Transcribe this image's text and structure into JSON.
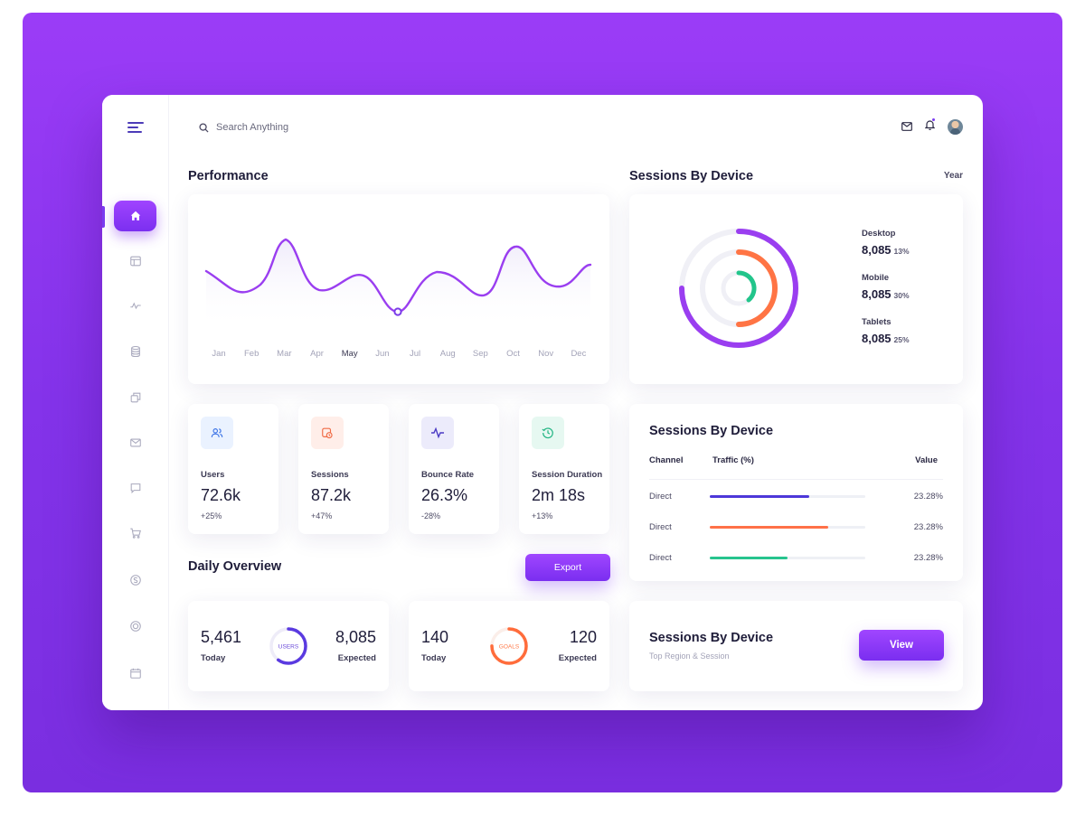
{
  "search": {
    "placeholder": "Search Anything"
  },
  "sidebar": {
    "items": [
      {
        "icon": "home-icon",
        "active": true
      },
      {
        "icon": "layout-icon"
      },
      {
        "icon": "activity-icon"
      },
      {
        "icon": "database-icon"
      },
      {
        "icon": "copy-icon"
      },
      {
        "icon": "mail-icon"
      },
      {
        "icon": "chat-icon"
      },
      {
        "icon": "cart-icon"
      },
      {
        "icon": "currency-icon"
      },
      {
        "icon": "target-icon"
      },
      {
        "icon": "calendar-icon"
      }
    ]
  },
  "performance": {
    "title": "Performance",
    "months": [
      "Jan",
      "Feb",
      "Mar",
      "Apr",
      "May",
      "Jun",
      "Jul",
      "Aug",
      "Sep",
      "Oct",
      "Nov",
      "Dec"
    ],
    "active_month": "May",
    "line_color": "#9a3ef0"
  },
  "sessions_device": {
    "title": "Sessions By Device",
    "period": "Year",
    "devices": [
      {
        "name": "Desktop",
        "value": "8,085",
        "percent": "13%",
        "color": "#9a3ef0"
      },
      {
        "name": "Mobile",
        "value": "8,085",
        "percent": "30%",
        "color": "#ff7444"
      },
      {
        "name": "Tablets",
        "value": "8,085",
        "percent": "25%",
        "color": "#22c58b"
      }
    ]
  },
  "stats": [
    {
      "label": "Users",
      "value": "72.6k",
      "change": "+25%",
      "icon": "users-icon",
      "bg": "#eaf2ff",
      "fg": "#3b73e6"
    },
    {
      "label": "Sessions",
      "value": "87.2k",
      "change": "+47%",
      "icon": "stopwatch-icon",
      "bg": "#ffeee9",
      "fg": "#f06b45"
    },
    {
      "label": "Bounce Rate",
      "value": "26.3%",
      "change": "-28%",
      "icon": "pulse-icon",
      "bg": "#ecebfb",
      "fg": "#4b3bc4"
    },
    {
      "label": "Session Duration",
      "value": "2m 18s",
      "change": "+13%",
      "icon": "clock-icon",
      "bg": "#e6f8f1",
      "fg": "#22b583"
    }
  ],
  "traffic": {
    "title": "Sessions By Device",
    "headers": {
      "channel": "Channel",
      "traffic": "Traffic (%)",
      "value": "Value"
    },
    "rows": [
      {
        "channel": "Direct",
        "fill": 0.64,
        "color": "#4d38d9",
        "value": "23.28%"
      },
      {
        "channel": "Direct",
        "fill": 0.76,
        "color": "#ff7148",
        "value": "23.28%"
      },
      {
        "channel": "Direct",
        "fill": 0.5,
        "color": "#27c48e",
        "value": "23.28%"
      }
    ]
  },
  "daily": {
    "title": "Daily Overview",
    "export_label": "Export",
    "cards": [
      {
        "today_value": "5,461",
        "today_label": "Today",
        "expected_value": "8,085",
        "expected_label": "Expected",
        "ring_label": "USERS",
        "ring_color": "#5a3ae0",
        "ring_text_color": "#6a4bd9",
        "progress": 0.6
      },
      {
        "today_value": "140",
        "today_label": "Today",
        "expected_value": "120",
        "expected_label": "Expected",
        "ring_label": "GOALS",
        "ring_color": "#ff6c3b",
        "ring_text_color": "#ff7a4a",
        "progress": 0.75
      }
    ]
  },
  "region": {
    "title": "Sessions By Device",
    "subtitle": "Top Region & Session",
    "button_label": "View"
  }
}
